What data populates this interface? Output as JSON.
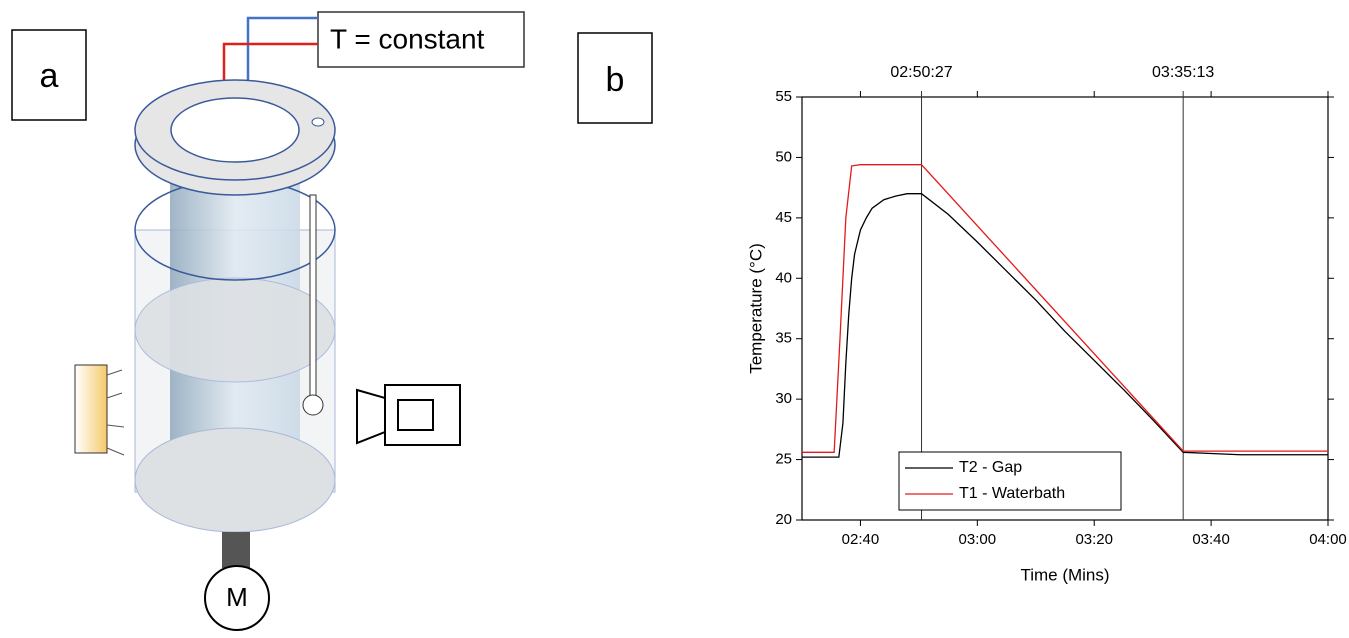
{
  "panel_a": {
    "label": "a",
    "annotation": "T = constant",
    "motor": "M"
  },
  "panel_b": {
    "label": "b"
  },
  "chart_data": {
    "type": "line",
    "x_label": "Time (Mins)",
    "y_label": "Temperature (°C)",
    "xlim": [
      150,
      240
    ],
    "xticks": [
      {
        "value": 160,
        "label": "02:40"
      },
      {
        "value": 180,
        "label": "03:00"
      },
      {
        "value": 200,
        "label": "03:20"
      },
      {
        "value": 220,
        "label": "03:40"
      },
      {
        "value": 240,
        "label": "04:00"
      }
    ],
    "x2ticks": [
      {
        "value": 170.45,
        "label": "02:50:27"
      },
      {
        "value": 215.22,
        "label": "03:35:13"
      }
    ],
    "ylim": [
      20,
      55
    ],
    "yticks": [
      20,
      25,
      30,
      35,
      40,
      45,
      50,
      55
    ],
    "legend": "lower center",
    "series": [
      {
        "name": "T2 - Gap",
        "color": "#000000",
        "x": [
          150,
          156.3,
          157,
          157.5,
          158,
          158.5,
          159,
          160,
          161,
          162,
          164,
          166,
          168,
          170.45,
          175,
          180,
          185,
          190,
          195,
          200,
          205,
          210,
          215.22,
          220,
          225,
          230,
          240
        ],
        "values": [
          25.2,
          25.2,
          28,
          33,
          37,
          40,
          42,
          44,
          45,
          45.8,
          46.5,
          46.8,
          47,
          47,
          45.3,
          43,
          40.6,
          38.2,
          35.6,
          33.2,
          30.8,
          28.3,
          25.6,
          25.5,
          25.4,
          25.4,
          25.4
        ]
      },
      {
        "name": "T1 - Waterbath",
        "color": "#e31a1c",
        "x": [
          150,
          155.5,
          156.5,
          157.5,
          158.5,
          160,
          170.45,
          215.22,
          240
        ],
        "values": [
          25.6,
          25.6,
          35,
          45,
          49.3,
          49.4,
          49.4,
          25.7,
          25.7
        ]
      }
    ]
  }
}
